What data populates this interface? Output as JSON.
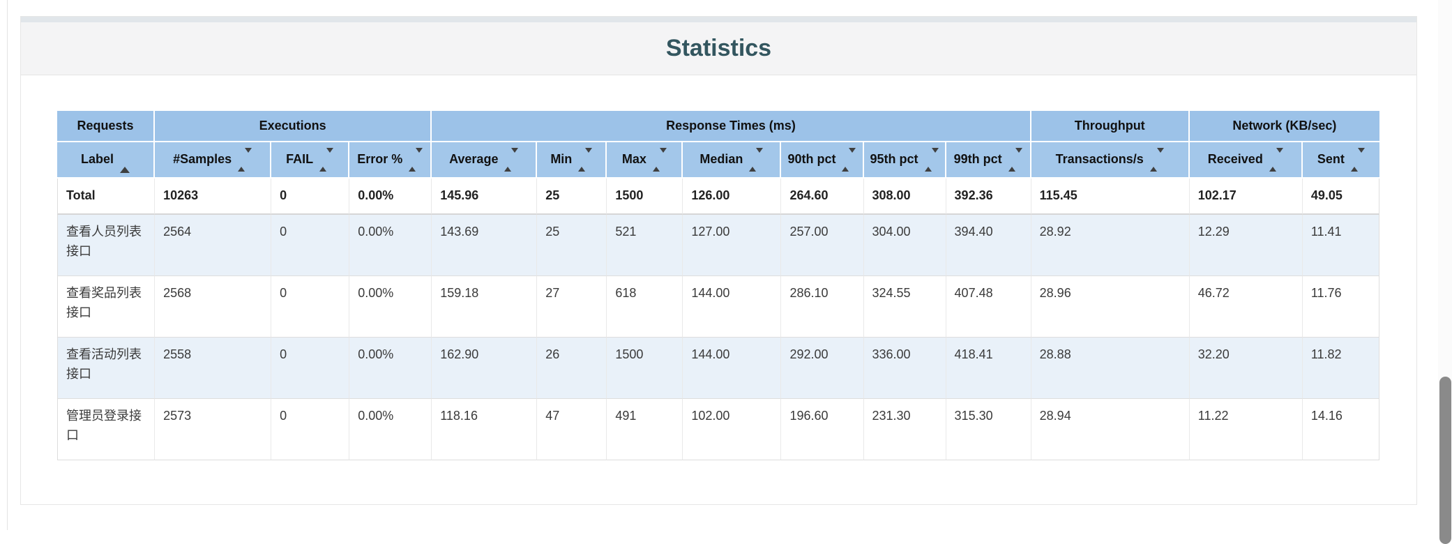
{
  "page": {
    "title": "Statistics"
  },
  "table": {
    "group_headers": [
      {
        "label": "Requests",
        "colspan": 1
      },
      {
        "label": "Executions",
        "colspan": 3
      },
      {
        "label": "Response Times (ms)",
        "colspan": 7
      },
      {
        "label": "Throughput",
        "colspan": 1
      },
      {
        "label": "Network (KB/sec)",
        "colspan": 2
      }
    ],
    "columns": [
      {
        "label": "Label",
        "sort": "asc"
      },
      {
        "label": "#Samples",
        "sort": "both"
      },
      {
        "label": "FAIL",
        "sort": "both"
      },
      {
        "label": "Error %",
        "sort": "both"
      },
      {
        "label": "Average",
        "sort": "both"
      },
      {
        "label": "Min",
        "sort": "both"
      },
      {
        "label": "Max",
        "sort": "both"
      },
      {
        "label": "Median",
        "sort": "both"
      },
      {
        "label": "90th pct",
        "sort": "both"
      },
      {
        "label": "95th pct",
        "sort": "both"
      },
      {
        "label": "99th pct",
        "sort": "both"
      },
      {
        "label": "Transactions/s",
        "sort": "both"
      },
      {
        "label": "Received",
        "sort": "both"
      },
      {
        "label": "Sent",
        "sort": "both"
      }
    ],
    "total_row": [
      "Total",
      "10263",
      "0",
      "0.00%",
      "145.96",
      "25",
      "1500",
      "126.00",
      "264.60",
      "308.00",
      "392.36",
      "115.45",
      "102.17",
      "49.05"
    ],
    "rows": [
      [
        "查看人员列表接口",
        "2564",
        "0",
        "0.00%",
        "143.69",
        "25",
        "521",
        "127.00",
        "257.00",
        "304.00",
        "394.40",
        "28.92",
        "12.29",
        "11.41"
      ],
      [
        "查看奖品列表接口",
        "2568",
        "0",
        "0.00%",
        "159.18",
        "27",
        "618",
        "144.00",
        "286.10",
        "324.55",
        "407.48",
        "28.96",
        "46.72",
        "11.76"
      ],
      [
        "查看活动列表接口",
        "2558",
        "0",
        "0.00%",
        "162.90",
        "26",
        "1500",
        "144.00",
        "292.00",
        "336.00",
        "418.41",
        "28.88",
        "32.20",
        "11.82"
      ],
      [
        "管理员登录接口",
        "2573",
        "0",
        "0.00%",
        "118.16",
        "47",
        "491",
        "102.00",
        "196.60",
        "231.30",
        "315.30",
        "28.94",
        "11.22",
        "14.16"
      ]
    ]
  },
  "colors": {
    "group_header_blue": "#9cc2e8",
    "column_header_blue": "#a3c7ea",
    "row_stripe_blue": "#e9f1f9",
    "title_color": "#33565f",
    "scrollbar_thumb": "#8a8a8a"
  }
}
